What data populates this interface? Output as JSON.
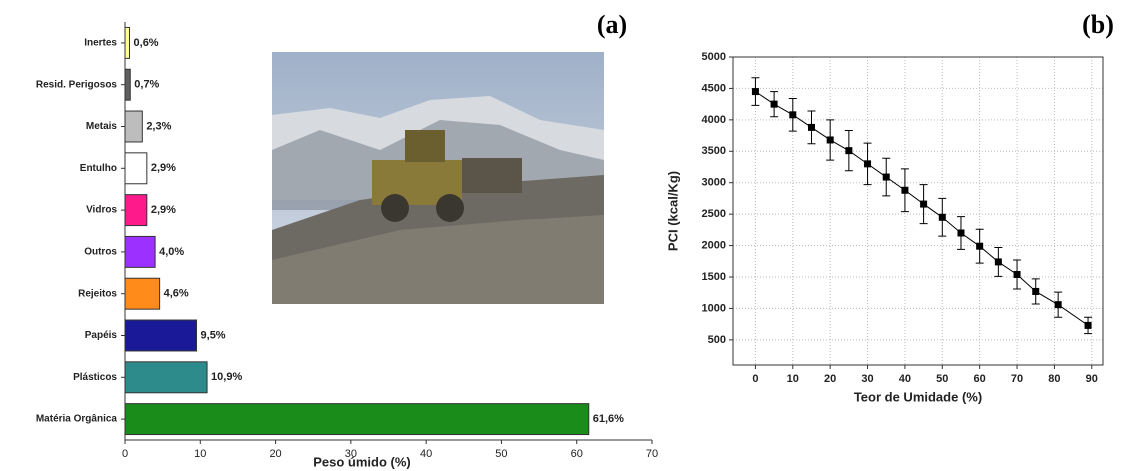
{
  "chart_data": [
    {
      "type": "barh",
      "title": "(a)",
      "categories": [
        "Inertes",
        "Resid. Perigosos",
        "Metais",
        "Entulho",
        "Vidros",
        "Outros",
        "Rejeitos",
        "Papéis",
        "Plásticos",
        "Matéria Orgânica"
      ],
      "values": [
        0.6,
        0.7,
        2.3,
        2.9,
        2.9,
        4.0,
        4.6,
        9.5,
        10.9,
        61.6
      ],
      "value_labels": [
        "0,6%",
        "0,7%",
        "2,3%",
        "2,9%",
        "2,9%",
        "4,0%",
        "4,6%",
        "9,5%",
        "10,9%",
        "61,6%"
      ],
      "colors": [
        "#ffff99",
        "#606060",
        "#bdbdbd",
        "#ffffff",
        "#ff1a8c",
        "#9b30ff",
        "#ff8c1a",
        "#1a1a99",
        "#2e8b8b",
        "#1a8c1a"
      ],
      "xlabel": "Peso úmido (%)",
      "xlim": [
        0,
        70
      ],
      "xticks": [
        0,
        10,
        20,
        30,
        40,
        50,
        60,
        70
      ]
    },
    {
      "type": "line",
      "title": "(b)",
      "x": [
        0,
        5,
        10,
        15,
        20,
        25,
        30,
        35,
        40,
        45,
        50,
        55,
        60,
        65,
        70,
        75,
        81,
        89
      ],
      "values": [
        4450,
        4250,
        4080,
        3880,
        3680,
        3510,
        3300,
        3090,
        2880,
        2660,
        2450,
        2200,
        1990,
        1740,
        1540,
        1270,
        1060,
        730
      ],
      "errors": [
        220,
        200,
        260,
        260,
        320,
        320,
        330,
        300,
        340,
        310,
        300,
        260,
        270,
        230,
        230,
        200,
        200,
        130
      ],
      "color": "#000000",
      "xlabel": "Teor de Umidade  (%)",
      "ylabel": "PCI  (kcal/Kg)",
      "xlim": [
        -6,
        93
      ],
      "xticks": [
        0,
        10,
        20,
        30,
        40,
        50,
        60,
        70,
        80,
        90
      ],
      "ylim": [
        100,
        5000
      ],
      "yticks": [
        500,
        1000,
        1500,
        2000,
        2500,
        3000,
        3500,
        4000,
        4500,
        5000
      ],
      "grid": true
    }
  ]
}
